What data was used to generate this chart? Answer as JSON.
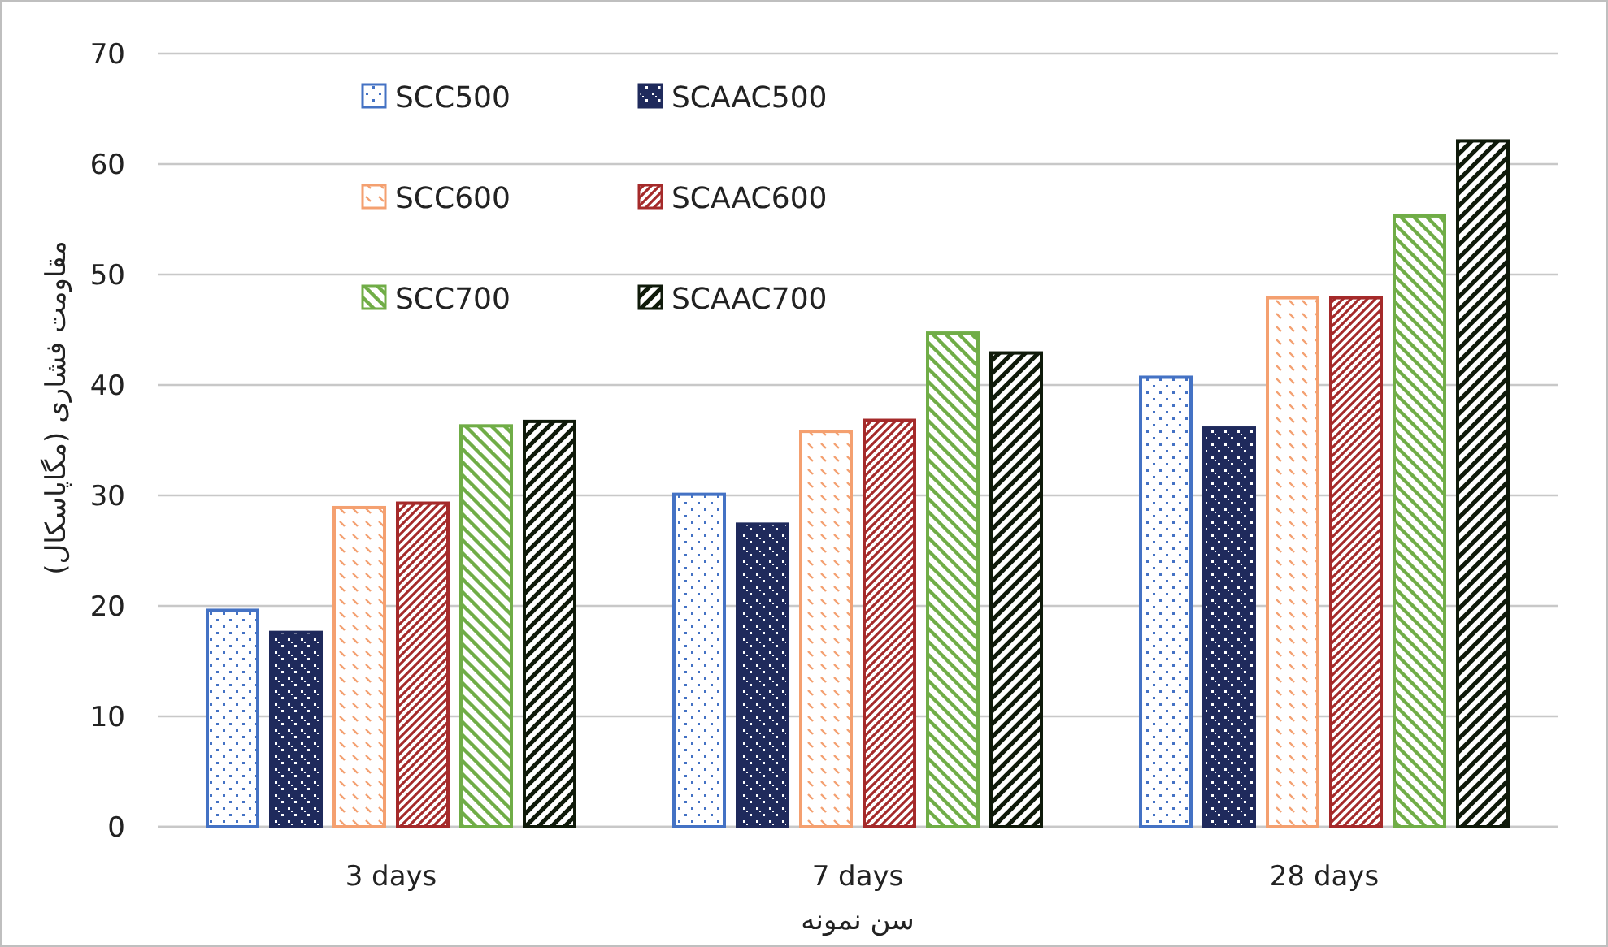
{
  "chart_data": {
    "type": "bar",
    "xlabel": "سن نمونه",
    "ylabel": "مقاومت فشاری (مگاپاسکال)",
    "categories": [
      "3 days",
      "7 days",
      "28 days"
    ],
    "series": [
      {
        "name": "SCC500",
        "color": "#4472c4",
        "values": [
          19.6,
          30.1,
          40.7
        ]
      },
      {
        "name": "SCAAC500",
        "color": "#1f2a5c",
        "values": [
          17.6,
          27.4,
          36.1
        ]
      },
      {
        "name": "SCC600",
        "color": "#f4a070",
        "values": [
          28.9,
          35.8,
          47.9
        ]
      },
      {
        "name": "SCAAC600",
        "color": "#a52a2a",
        "values": [
          29.3,
          36.8,
          47.9
        ]
      },
      {
        "name": "SCC700",
        "color": "#70ad47",
        "values": [
          36.3,
          44.7,
          55.3
        ]
      },
      {
        "name": "SCAAC700",
        "color": "#0f1a0a",
        "values": [
          36.7,
          42.9,
          62.1
        ]
      }
    ],
    "ylim": [
      0,
      70
    ],
    "yticks": [
      0,
      10,
      20,
      30,
      40,
      50,
      60,
      70
    ],
    "grid": "y",
    "legend": "top left"
  }
}
